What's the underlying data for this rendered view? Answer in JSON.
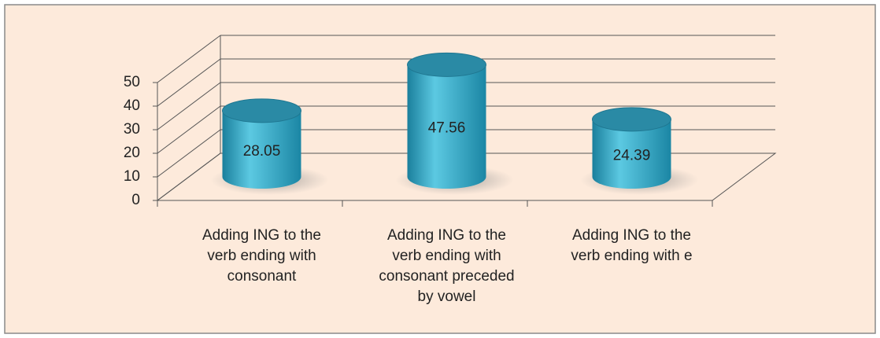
{
  "chart_data": {
    "type": "bar",
    "categories": [
      "Adding ING to the verb ending with consonant",
      "Adding ING to the verb ending with consonant preceded by vowel",
      "Adding ING to the verb ending with e"
    ],
    "values": [
      28.05,
      47.56,
      24.39
    ],
    "color": "#2a9bbb",
    "ylim": [
      0,
      50
    ],
    "yticks": [
      0,
      10,
      20,
      30,
      40,
      50
    ],
    "grid": true
  }
}
